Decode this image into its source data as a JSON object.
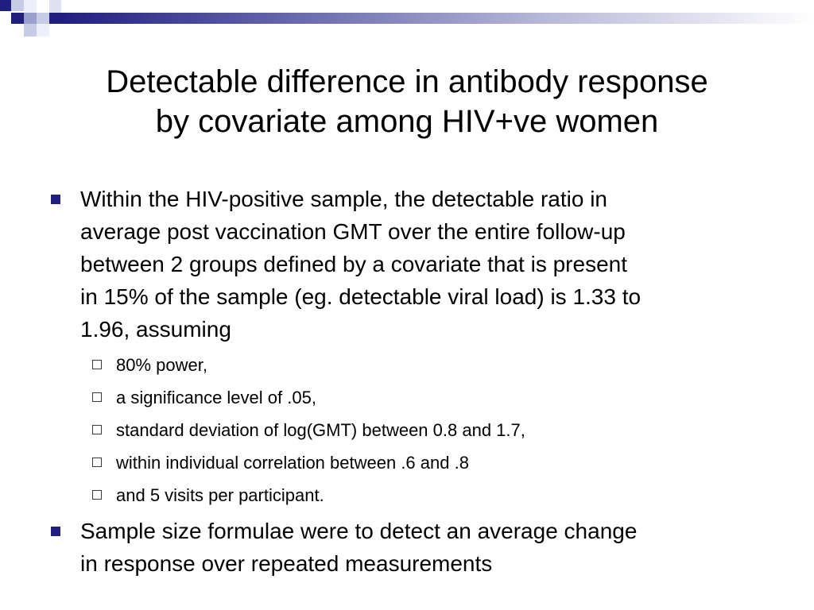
{
  "slide": {
    "title_lines": [
      "Detectable difference in antibody response",
      "by covariate among HIV+ve women"
    ],
    "bullet1_lines": [
      "Within the HIV-positive sample, the detectable ratio in",
      "average post vaccination GMT over the entire follow-up",
      "between 2 groups defined by a covariate that is present",
      "in 15% of the sample (eg. detectable viral load) is 1.33 to",
      "1.96, assuming"
    ],
    "sub_bullets": [
      "80% power,",
      "a significance level of .05,",
      "standard deviation of log(GMT) between 0.8 and 1.7,",
      "within individual correlation between .6 and .8",
      "and 5 visits per participant."
    ],
    "bullet2_lines": [
      "Sample size formulae were to detect an average change",
      "in response over repeated measurements"
    ]
  },
  "theme": {
    "accent": "#1f1f80",
    "accent_light": "#9aa0cc"
  }
}
